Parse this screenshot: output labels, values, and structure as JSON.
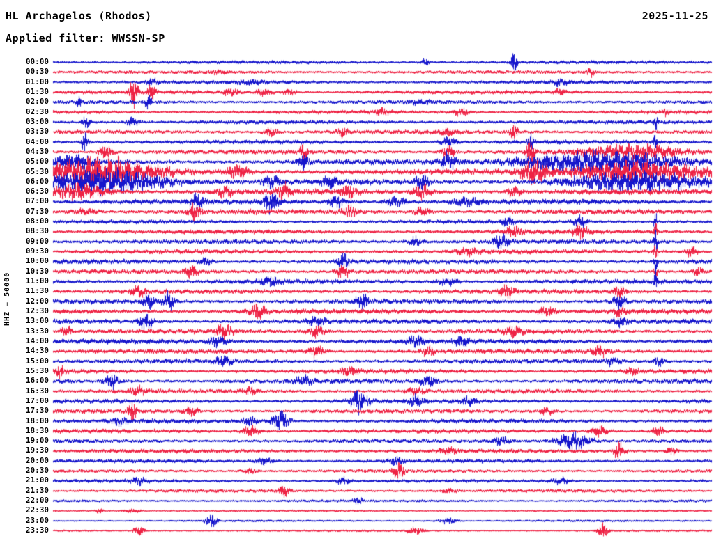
{
  "header": {
    "station": "HL Archagelos (Rhodos)",
    "date": "2025-11-25",
    "filter": "Applied filter: WWSSN-SP"
  },
  "axis": {
    "scale_label": "HHZ = 50000"
  },
  "chart_data": {
    "type": "line",
    "variant": "helicorder-seismogram",
    "title": "HL Archagelos (Rhodos)",
    "date": "2025-11-25",
    "filter": "WWSSN-SP",
    "channel_scale_label": "HHZ = 50000",
    "minutes_per_row": 30,
    "rows_start": "00:00",
    "rows_end": "23:30",
    "colors": {
      "blue": "#1515cc",
      "red": "#ee2244"
    },
    "event_format": "[position_fraction_of_row, gaussian_width_fraction, amplitude_px] (estimated from pixels)",
    "rows": [
      {
        "time": "00:00",
        "color": "blue",
        "base_amp": 1.6,
        "events": [
          [
            0.7,
            0.004,
            16
          ],
          [
            0.565,
            0.006,
            4
          ]
        ]
      },
      {
        "time": "00:30",
        "color": "red",
        "base_amp": 1.6,
        "events": [
          [
            0.815,
            0.006,
            6
          ],
          [
            0.25,
            0.01,
            2
          ]
        ]
      },
      {
        "time": "01:00",
        "color": "blue",
        "base_amp": 1.7,
        "events": [
          [
            0.15,
            0.008,
            4
          ],
          [
            0.77,
            0.01,
            4
          ],
          [
            0.3,
            0.02,
            2
          ]
        ]
      },
      {
        "time": "01:30",
        "color": "red",
        "base_amp": 1.8,
        "events": [
          [
            0.122,
            0.006,
            19
          ],
          [
            0.15,
            0.006,
            10
          ],
          [
            0.27,
            0.012,
            4
          ],
          [
            0.32,
            0.012,
            4
          ],
          [
            0.36,
            0.01,
            3
          ],
          [
            0.77,
            0.01,
            3
          ]
        ]
      },
      {
        "time": "02:00",
        "color": "blue",
        "base_amp": 1.8,
        "events": [
          [
            0.04,
            0.004,
            6
          ],
          [
            0.145,
            0.005,
            9
          ],
          [
            0.56,
            0.02,
            2
          ]
        ]
      },
      {
        "time": "02:30",
        "color": "red",
        "base_amp": 1.8,
        "events": [
          [
            0.5,
            0.01,
            4
          ],
          [
            0.62,
            0.012,
            4
          ],
          [
            0.93,
            0.006,
            3
          ]
        ]
      },
      {
        "time": "03:00",
        "color": "blue",
        "base_amp": 1.8,
        "events": [
          [
            0.05,
            0.006,
            7
          ],
          [
            0.12,
            0.01,
            5
          ],
          [
            0.915,
            0.003,
            9
          ]
        ]
      },
      {
        "time": "03:30",
        "color": "red",
        "base_amp": 2.0,
        "events": [
          [
            0.33,
            0.01,
            5
          ],
          [
            0.44,
            0.008,
            5
          ],
          [
            0.6,
            0.01,
            4
          ],
          [
            0.7,
            0.006,
            9
          ]
        ]
      },
      {
        "time": "04:00",
        "color": "blue",
        "base_amp": 2.0,
        "events": [
          [
            0.048,
            0.005,
            13
          ],
          [
            0.6,
            0.012,
            5
          ],
          [
            0.725,
            0.004,
            16
          ],
          [
            0.915,
            0.003,
            8
          ]
        ]
      },
      {
        "time": "04:30",
        "color": "red",
        "base_amp": 2.2,
        "events": [
          [
            0.08,
            0.01,
            8
          ],
          [
            0.38,
            0.006,
            8
          ],
          [
            0.6,
            0.01,
            7
          ],
          [
            0.725,
            0.006,
            15
          ],
          [
            0.88,
            0.07,
            8
          ]
        ]
      },
      {
        "time": "05:00",
        "color": "blue",
        "base_amp": 2.6,
        "events": [
          [
            0.03,
            0.03,
            7
          ],
          [
            0.38,
            0.008,
            9
          ],
          [
            0.6,
            0.01,
            9
          ],
          [
            0.82,
            0.11,
            13
          ]
        ]
      },
      {
        "time": "05:30",
        "color": "red",
        "base_amp": 2.8,
        "events": [
          [
            0.07,
            0.085,
            16
          ],
          [
            0.28,
            0.015,
            7
          ],
          [
            0.73,
            0.02,
            12
          ],
          [
            0.89,
            0.095,
            12
          ]
        ]
      },
      {
        "time": "06:00",
        "color": "blue",
        "base_amp": 2.8,
        "events": [
          [
            0.08,
            0.09,
            14
          ],
          [
            0.33,
            0.012,
            7
          ],
          [
            0.42,
            0.01,
            8
          ],
          [
            0.56,
            0.01,
            8
          ],
          [
            0.88,
            0.1,
            10
          ]
        ]
      },
      {
        "time": "06:30",
        "color": "red",
        "base_amp": 2.6,
        "events": [
          [
            0.04,
            0.04,
            9
          ],
          [
            0.26,
            0.012,
            6
          ],
          [
            0.35,
            0.01,
            9
          ],
          [
            0.45,
            0.012,
            8
          ],
          [
            0.56,
            0.012,
            9
          ],
          [
            0.7,
            0.01,
            6
          ]
        ]
      },
      {
        "time": "07:00",
        "color": "blue",
        "base_amp": 2.4,
        "events": [
          [
            0.22,
            0.01,
            8
          ],
          [
            0.33,
            0.012,
            11
          ],
          [
            0.43,
            0.01,
            8
          ],
          [
            0.52,
            0.015,
            6
          ],
          [
            0.63,
            0.02,
            4
          ]
        ]
      },
      {
        "time": "07:30",
        "color": "red",
        "base_amp": 2.4,
        "events": [
          [
            0.215,
            0.008,
            12
          ],
          [
            0.05,
            0.02,
            3
          ],
          [
            0.45,
            0.012,
            6
          ],
          [
            0.56,
            0.012,
            5
          ]
        ]
      },
      {
        "time": "08:00",
        "color": "blue",
        "base_amp": 1.9,
        "events": [
          [
            0.69,
            0.008,
            5
          ],
          [
            0.8,
            0.01,
            6
          ],
          [
            0.915,
            0.0025,
            14
          ]
        ]
      },
      {
        "time": "08:30",
        "color": "red",
        "base_amp": 2.0,
        "events": [
          [
            0.7,
            0.012,
            6
          ],
          [
            0.8,
            0.012,
            8
          ],
          [
            0.915,
            0.0025,
            12
          ]
        ]
      },
      {
        "time": "09:00",
        "color": "blue",
        "base_amp": 2.2,
        "events": [
          [
            0.55,
            0.01,
            6
          ],
          [
            0.68,
            0.01,
            11
          ],
          [
            0.915,
            0.003,
            16
          ]
        ]
      },
      {
        "time": "09:30",
        "color": "red",
        "base_amp": 2.2,
        "events": [
          [
            0.63,
            0.015,
            4
          ],
          [
            0.915,
            0.003,
            11
          ],
          [
            0.97,
            0.008,
            6
          ]
        ]
      },
      {
        "time": "10:00",
        "color": "blue",
        "base_amp": 2.2,
        "events": [
          [
            0.23,
            0.01,
            4
          ],
          [
            0.44,
            0.008,
            10
          ],
          [
            0.915,
            0.003,
            8
          ]
        ]
      },
      {
        "time": "10:30",
        "color": "red",
        "base_amp": 2.2,
        "events": [
          [
            0.21,
            0.01,
            6
          ],
          [
            0.44,
            0.01,
            8
          ],
          [
            0.915,
            0.003,
            7
          ],
          [
            0.98,
            0.006,
            6
          ]
        ]
      },
      {
        "time": "11:00",
        "color": "blue",
        "base_amp": 2.2,
        "events": [
          [
            0.33,
            0.012,
            5
          ],
          [
            0.6,
            0.015,
            4
          ],
          [
            0.915,
            0.0022,
            26
          ]
        ]
      },
      {
        "time": "11:30",
        "color": "red",
        "base_amp": 2.2,
        "events": [
          [
            0.13,
            0.01,
            6
          ],
          [
            0.69,
            0.012,
            6
          ],
          [
            0.86,
            0.01,
            6
          ]
        ]
      },
      {
        "time": "12:00",
        "color": "blue",
        "base_amp": 2.3,
        "events": [
          [
            0.145,
            0.008,
            10
          ],
          [
            0.175,
            0.008,
            12
          ],
          [
            0.47,
            0.01,
            8
          ],
          [
            0.86,
            0.01,
            8
          ]
        ]
      },
      {
        "time": "12:30",
        "color": "red",
        "base_amp": 2.3,
        "events": [
          [
            0.31,
            0.012,
            9
          ],
          [
            0.75,
            0.012,
            6
          ],
          [
            0.86,
            0.01,
            5
          ]
        ]
      },
      {
        "time": "13:00",
        "color": "blue",
        "base_amp": 2.3,
        "events": [
          [
            0.14,
            0.01,
            11
          ],
          [
            0.4,
            0.012,
            6
          ],
          [
            0.86,
            0.012,
            6
          ]
        ]
      },
      {
        "time": "13:30",
        "color": "red",
        "base_amp": 2.3,
        "events": [
          [
            0.02,
            0.008,
            6
          ],
          [
            0.26,
            0.012,
            8
          ],
          [
            0.4,
            0.012,
            6
          ],
          [
            0.7,
            0.012,
            5
          ]
        ]
      },
      {
        "time": "14:00",
        "color": "blue",
        "base_amp": 2.3,
        "events": [
          [
            0.25,
            0.012,
            6
          ],
          [
            0.55,
            0.012,
            6
          ],
          [
            0.62,
            0.01,
            5
          ]
        ]
      },
      {
        "time": "14:30",
        "color": "red",
        "base_amp": 2.2,
        "events": [
          [
            0.4,
            0.012,
            6
          ],
          [
            0.57,
            0.01,
            5
          ],
          [
            0.83,
            0.012,
            6
          ]
        ]
      },
      {
        "time": "15:00",
        "color": "blue",
        "base_amp": 2.2,
        "events": [
          [
            0.26,
            0.01,
            8
          ],
          [
            0.85,
            0.012,
            5
          ],
          [
            0.92,
            0.008,
            5
          ]
        ]
      },
      {
        "time": "15:30",
        "color": "red",
        "base_amp": 2.1,
        "events": [
          [
            0.01,
            0.006,
            7
          ],
          [
            0.45,
            0.012,
            5
          ],
          [
            0.88,
            0.01,
            4
          ]
        ]
      },
      {
        "time": "16:00",
        "color": "blue",
        "base_amp": 2.1,
        "events": [
          [
            0.09,
            0.01,
            10
          ],
          [
            0.38,
            0.012,
            6
          ],
          [
            0.57,
            0.012,
            6
          ]
        ]
      },
      {
        "time": "16:30",
        "color": "red",
        "base_amp": 2.0,
        "events": [
          [
            0.13,
            0.012,
            5
          ],
          [
            0.3,
            0.01,
            4
          ],
          [
            0.55,
            0.015,
            4
          ]
        ]
      },
      {
        "time": "17:00",
        "color": "blue",
        "base_amp": 2.0,
        "events": [
          [
            0.465,
            0.012,
            16
          ],
          [
            0.55,
            0.01,
            6
          ],
          [
            0.63,
            0.012,
            5
          ]
        ]
      },
      {
        "time": "17:30",
        "color": "red",
        "base_amp": 2.0,
        "events": [
          [
            0.12,
            0.006,
            13
          ],
          [
            0.21,
            0.01,
            5
          ],
          [
            0.75,
            0.012,
            4
          ]
        ]
      },
      {
        "time": "18:00",
        "color": "blue",
        "base_amp": 2.0,
        "events": [
          [
            0.1,
            0.01,
            5
          ],
          [
            0.3,
            0.01,
            5
          ],
          [
            0.345,
            0.012,
            13
          ]
        ]
      },
      {
        "time": "18:30",
        "color": "red",
        "base_amp": 2.0,
        "events": [
          [
            0.3,
            0.012,
            6
          ],
          [
            0.83,
            0.012,
            6
          ],
          [
            0.92,
            0.008,
            5
          ]
        ]
      },
      {
        "time": "19:00",
        "color": "blue",
        "base_amp": 1.9,
        "events": [
          [
            0.68,
            0.012,
            5
          ],
          [
            0.79,
            0.025,
            11
          ]
        ]
      },
      {
        "time": "19:30",
        "color": "red",
        "base_amp": 1.9,
        "events": [
          [
            0.6,
            0.015,
            3
          ],
          [
            0.86,
            0.008,
            10
          ],
          [
            0.94,
            0.008,
            5
          ]
        ]
      },
      {
        "time": "20:00",
        "color": "blue",
        "base_amp": 1.7,
        "events": [
          [
            0.32,
            0.012,
            4
          ],
          [
            0.52,
            0.012,
            4
          ]
        ]
      },
      {
        "time": "20:30",
        "color": "red",
        "base_amp": 1.6,
        "events": [
          [
            0.3,
            0.012,
            3
          ],
          [
            0.525,
            0.008,
            10
          ]
        ]
      },
      {
        "time": "21:00",
        "color": "blue",
        "base_amp": 1.6,
        "events": [
          [
            0.13,
            0.01,
            4
          ],
          [
            0.44,
            0.01,
            4
          ],
          [
            0.77,
            0.012,
            4
          ]
        ]
      },
      {
        "time": "21:30",
        "color": "red",
        "base_amp": 1.5,
        "events": [
          [
            0.35,
            0.008,
            6
          ],
          [
            0.6,
            0.015,
            2
          ]
        ]
      },
      {
        "time": "22:00",
        "color": "blue",
        "base_amp": 1.2,
        "events": [
          [
            0.463,
            0.006,
            4
          ]
        ]
      },
      {
        "time": "22:30",
        "color": "red",
        "base_amp": 0.9,
        "events": [
          [
            0.07,
            0.006,
            3
          ],
          [
            0.12,
            0.012,
            2
          ]
        ]
      },
      {
        "time": "23:00",
        "color": "blue",
        "base_amp": 0.9,
        "events": [
          [
            0.24,
            0.008,
            8
          ],
          [
            0.6,
            0.012,
            4
          ]
        ]
      },
      {
        "time": "23:30",
        "color": "red",
        "base_amp": 0.9,
        "events": [
          [
            0.13,
            0.008,
            6
          ],
          [
            0.55,
            0.012,
            4
          ],
          [
            0.835,
            0.008,
            9
          ]
        ]
      }
    ]
  }
}
